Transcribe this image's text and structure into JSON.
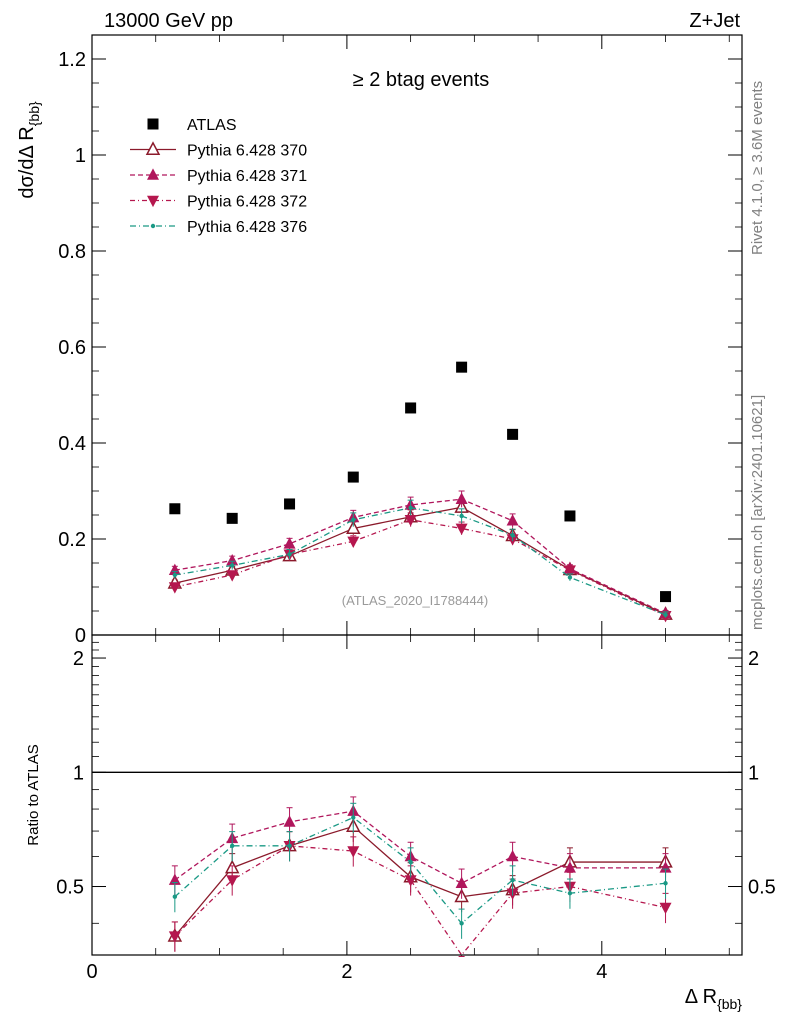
{
  "header": {
    "left": "13000 GeV pp",
    "right": "Z+Jet"
  },
  "side_labels": {
    "rivet": "Rivet 4.1.0, ≥ 3.6M events",
    "mcplots": "mcplots.cern.ch [arXiv:2401.10621]"
  },
  "chart_data": {
    "type": "scatter",
    "title": "≥ 2 btag events",
    "watermark": "(ATLAS_2020_I1788444)",
    "xlabel": "Δ R",
    "xlabel_sub": "{bb}",
    "ylabel": "dσ/dΔ R",
    "ylabel_sub": "{bb}",
    "ratio_ylabel": "Ratio to ATLAS",
    "xlim": [
      0,
      5.1
    ],
    "ylim": [
      0,
      1.25
    ],
    "ratio_ylim": [
      0.33,
      2.3
    ],
    "x_ticks": [
      "0",
      "2",
      "4"
    ],
    "y_ticks": [
      "0",
      "0.2",
      "0.4",
      "0.6",
      "0.8",
      "1",
      "1.2"
    ],
    "ratio_ticks": [
      "0.5",
      "1",
      "2"
    ],
    "x": [
      0.65,
      1.1,
      1.55,
      2.05,
      2.5,
      2.9,
      3.3,
      3.75,
      4.5
    ],
    "series": [
      {
        "name": "ATLAS",
        "color": "#000000",
        "marker": "square",
        "dash": "",
        "values": [
          0.263,
          0.243,
          0.273,
          0.329,
          0.473,
          0.558,
          0.418,
          0.248,
          0.08
        ],
        "ratio": [
          1,
          1,
          1,
          1,
          1,
          1,
          1,
          1,
          1
        ]
      },
      {
        "name": "Pythia 6.428 370",
        "color": "#8b1a2b",
        "marker": "triangle-open",
        "dash": "",
        "values": [
          0.108,
          0.135,
          0.165,
          0.222,
          0.246,
          0.266,
          0.207,
          0.136,
          0.043
        ],
        "ratio": [
          0.37,
          0.56,
          0.64,
          0.72,
          0.53,
          0.47,
          0.49,
          0.58,
          0.58
        ]
      },
      {
        "name": "Pythia 6.428 371",
        "color": "#b0165c",
        "marker": "triangle",
        "dash": "5,3",
        "values": [
          0.135,
          0.155,
          0.19,
          0.245,
          0.271,
          0.283,
          0.238,
          0.138,
          0.045
        ],
        "ratio": [
          0.52,
          0.67,
          0.74,
          0.79,
          0.6,
          0.51,
          0.6,
          0.56,
          0.56
        ]
      },
      {
        "name": "Pythia 6.428 372",
        "color": "#b5174e",
        "marker": "triangle-down",
        "dash": "5,3,1,3",
        "values": [
          0.1,
          0.125,
          0.168,
          0.195,
          0.24,
          0.222,
          0.2,
          0.135,
          0.04
        ],
        "ratio": [
          0.37,
          0.52,
          0.64,
          0.62,
          0.52,
          0.3,
          0.48,
          0.5,
          0.44
        ]
      },
      {
        "name": "Pythia 6.428 376",
        "color": "#1a9985",
        "marker": "dot",
        "dash": "6,3,1,3",
        "values": [
          0.125,
          0.145,
          0.168,
          0.24,
          0.265,
          0.248,
          0.208,
          0.12,
          0.042
        ],
        "ratio": [
          0.47,
          0.64,
          0.64,
          0.76,
          0.58,
          0.4,
          0.52,
          0.48,
          0.51
        ]
      }
    ]
  }
}
